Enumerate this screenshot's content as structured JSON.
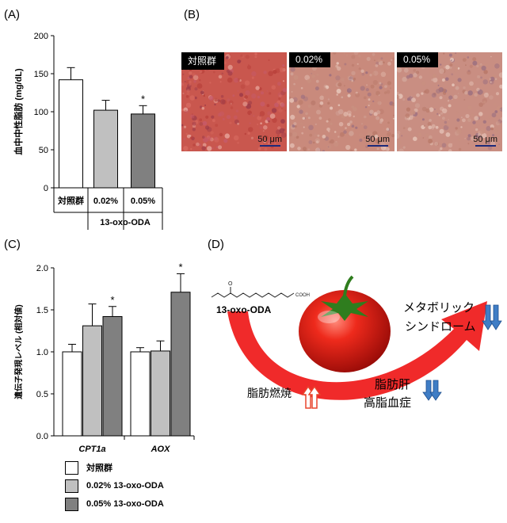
{
  "panels": {
    "a": "(A)",
    "b": "(B)",
    "c": "(C)",
    "d": "(D)"
  },
  "chart_data": [
    {
      "type": "bar",
      "categories": [
        "対照群",
        "0.02%",
        "0.05%"
      ],
      "values": [
        142,
        102,
        97
      ],
      "errors": [
        16,
        13,
        11
      ],
      "significance": [
        "",
        "",
        "*"
      ],
      "colors": [
        "#ffffff",
        "#c0c0c0",
        "#808080"
      ],
      "ylabel": "血中中性脂肪 (mg/dL)",
      "xgroup_label": "13-oxo-ODA",
      "ylim": [
        0,
        200
      ],
      "yticks": [
        0,
        50,
        100,
        150,
        200
      ]
    },
    {
      "type": "bar",
      "categories": [
        "CPT1a",
        "AOX"
      ],
      "series": [
        {
          "name": "対照群",
          "color": "#ffffff",
          "values": [
            1.0,
            1.0
          ],
          "errors": [
            0.09,
            0.05
          ],
          "significance": [
            "",
            ""
          ]
        },
        {
          "name": "0.02% 13-oxo-ODA",
          "color": "#c0c0c0",
          "values": [
            1.31,
            1.01
          ],
          "errors": [
            0.26,
            0.12
          ],
          "significance": [
            "",
            ""
          ]
        },
        {
          "name": "0.05% 13-oxo-ODA",
          "color": "#808080",
          "values": [
            1.42,
            1.71
          ],
          "errors": [
            0.12,
            0.22
          ],
          "significance": [
            "*",
            "*"
          ]
        }
      ],
      "ylabel": "遺伝子発現レベル (相対値)",
      "ylim": [
        0,
        2.0
      ],
      "yticks": [
        "0.0",
        "0.5",
        "1.0",
        "1.5",
        "2.0"
      ],
      "legend": "bottom"
    }
  ],
  "micrographs": [
    {
      "label": "対照群",
      "scale": "50 μm",
      "tone": "#c9574e"
    },
    {
      "label": "0.02%",
      "scale": "50 μm",
      "tone": "#c98a7c"
    },
    {
      "label": "0.05%",
      "scale": "50 μm",
      "tone": "#c98e82"
    }
  ],
  "diagram": {
    "compound": "13-oxo-ODA",
    "cooh": "COOH",
    "fat_burning": "脂肪燃焼",
    "fatty_liver": "脂肪肝",
    "hyperlipidemia": "高脂血症",
    "metabolic_1": "メタボリック",
    "metabolic_2": "シンドローム",
    "arrow_color": "#f02a2a",
    "up_arrow_color": "#e8452d",
    "down_arrow_color": "#3f7dc5"
  }
}
